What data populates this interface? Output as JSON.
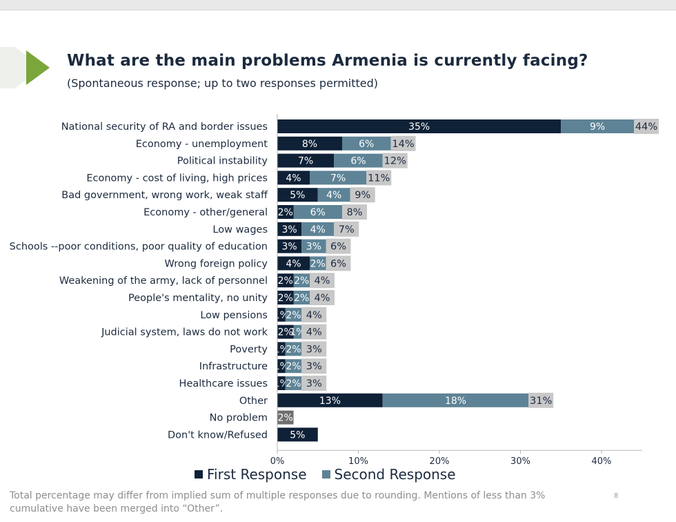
{
  "slide": {
    "title": "What are the main problems Armenia is currently facing?",
    "subtitle": "(Spontaneous response; up to two responses permitted)",
    "footnote": "Total percentage may differ from implied sum of multiple responses due to rounding. Mentions of less than 3% cumulative have been merged into “Other”.",
    "page_number": "8"
  },
  "colors": {
    "first": "#0f2137",
    "second": "#5e8396",
    "total_box": "#c8c8c8",
    "accent_green": "#7aa63a"
  },
  "legend": [
    {
      "name": "First Response",
      "color": "#0f2137"
    },
    {
      "name": "Second Response",
      "color": "#5e8396"
    }
  ],
  "chart_data": {
    "type": "bar",
    "orientation": "horizontal",
    "stacked": true,
    "categories": [
      "National security of RA and border issues",
      "Economy - unemployment",
      "Political instability",
      "Economy - cost of living, high prices",
      "Bad government, wrong work, weak staff",
      "Economy - other/general",
      "Low wages",
      "Schools --poor conditions, poor quality of education",
      "Wrong foreign policy",
      "Weakening of the army, lack of personnel",
      "People's mentality, no unity",
      "Low pensions",
      "Judicial system, laws do not work",
      "Poverty",
      "Infrastructure",
      "Healthcare issues",
      "Other",
      "No problem",
      "Don't know/Refused"
    ],
    "series": [
      {
        "name": "First Response",
        "values": [
          35,
          8,
          7,
          4,
          5,
          2,
          3,
          3,
          4,
          2,
          2,
          1,
          2,
          1,
          1,
          1,
          13,
          null,
          5
        ]
      },
      {
        "name": "Second Response",
        "values": [
          9,
          6,
          6,
          7,
          4,
          6,
          4,
          3,
          2,
          2,
          2,
          2,
          1,
          2,
          2,
          2,
          18,
          null,
          null
        ]
      }
    ],
    "totals": [
      44,
      14,
      12,
      11,
      9,
      8,
      7,
      6,
      6,
      4,
      4,
      4,
      4,
      3,
      3,
      3,
      31,
      null,
      null
    ],
    "single_values": [
      null,
      null,
      null,
      null,
      null,
      null,
      null,
      null,
      null,
      null,
      null,
      null,
      null,
      null,
      null,
      null,
      null,
      2,
      null
    ],
    "xlim": [
      0,
      45
    ],
    "xticks": [
      0,
      10,
      20,
      30,
      40
    ],
    "xtick_labels": [
      "0%",
      "10%",
      "20%",
      "30%",
      "40%"
    ],
    "value_suffix": "%",
    "grid": false,
    "legend_position": "bottom"
  }
}
